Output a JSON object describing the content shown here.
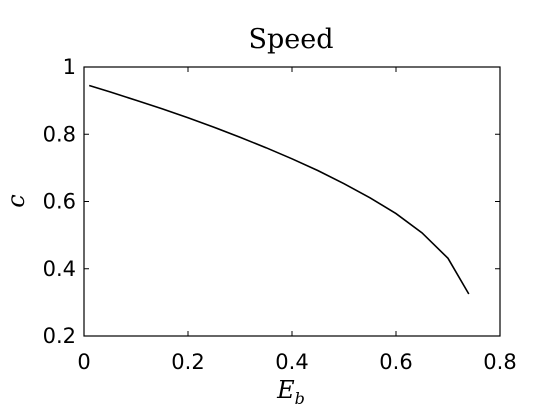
{
  "chart_data": {
    "type": "line",
    "title": "Speed",
    "xlabel": {
      "main": "E",
      "sub": "b"
    },
    "ylabel": "c",
    "xlim": [
      0,
      0.8
    ],
    "ylim": [
      0.2,
      1
    ],
    "xticks": [
      0,
      0.2,
      0.4,
      0.6,
      0.8
    ],
    "xtick_labels": [
      "0",
      "0.2",
      "0.4",
      "0.6",
      "0.8"
    ],
    "yticks": [
      0.2,
      0.4,
      0.6,
      0.8,
      1
    ],
    "ytick_labels": [
      "0.2",
      "0.4",
      "0.6",
      "0.8",
      "1"
    ],
    "grid": false,
    "series": [
      {
        "color": "#000000",
        "x": [
          0.01,
          0.05,
          0.1,
          0.15,
          0.2,
          0.25,
          0.3,
          0.35,
          0.4,
          0.45,
          0.5,
          0.55,
          0.6,
          0.65,
          0.7,
          0.74
        ],
        "y": [
          0.945,
          0.926,
          0.901,
          0.876,
          0.849,
          0.821,
          0.791,
          0.76,
          0.727,
          0.692,
          0.653,
          0.611,
          0.564,
          0.507,
          0.431,
          0.325
        ]
      }
    ]
  }
}
